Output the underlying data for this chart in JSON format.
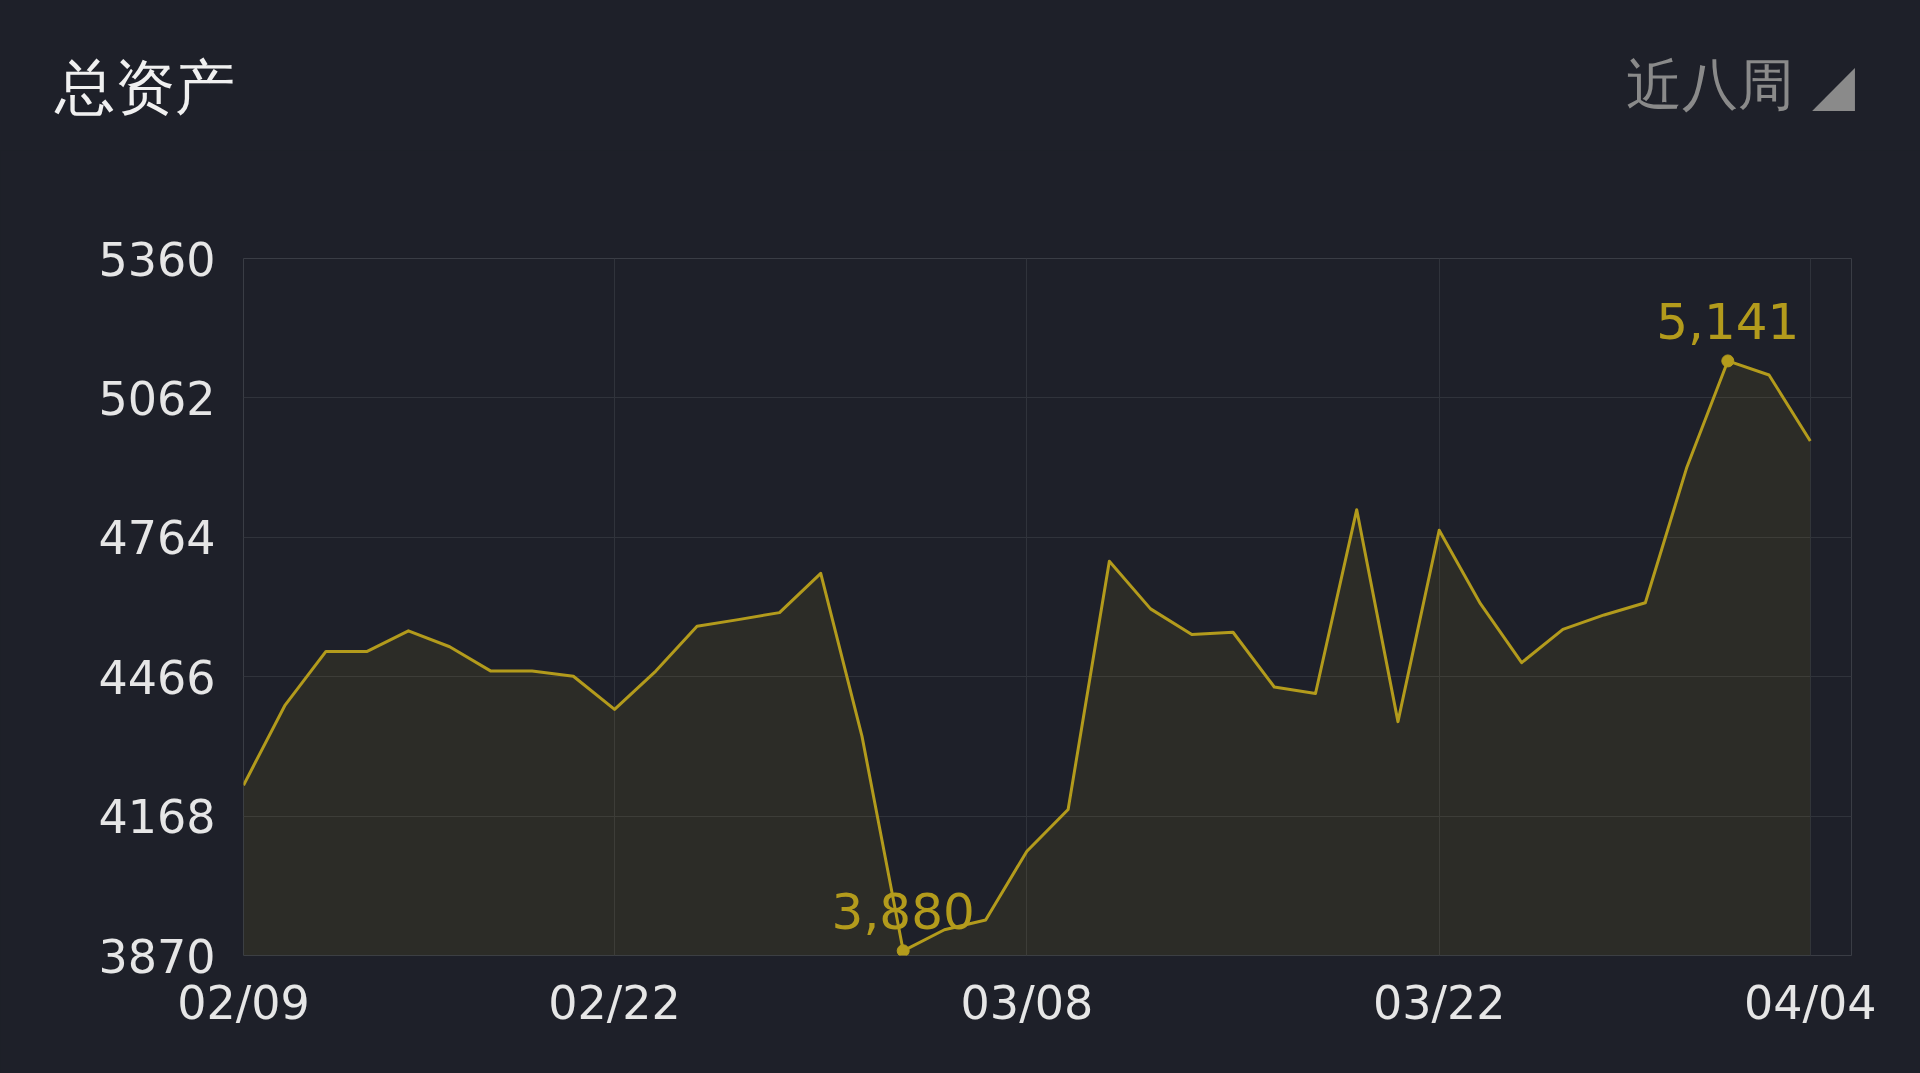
{
  "chart_data": {
    "type": "area",
    "title": "总资产",
    "annotations": [
      "近八周 ◢"
    ],
    "categories": [
      "02/09",
      null,
      null,
      null,
      null,
      null,
      null,
      null,
      null,
      "02/22",
      null,
      null,
      null,
      null,
      null,
      null,
      null,
      null,
      null,
      "03/08",
      null,
      null,
      null,
      null,
      null,
      null,
      null,
      null,
      null,
      "03/22",
      null,
      null,
      null,
      null,
      null,
      null,
      null,
      null,
      "04/04"
    ],
    "series": [
      {
        "color": "#b39b1c",
        "values": [
          4234,
          4404,
          4520,
          4520,
          4564,
          4530,
          4478,
          4478,
          4467,
          4396,
          4478,
          4574,
          4588,
          4603,
          4687,
          4339,
          3880,
          3925,
          3946,
          4093,
          4182,
          4713,
          4611,
          4556,
          4561,
          4444,
          4430,
          4823,
          4370,
          4779,
          4622,
          4496,
          4567,
          4598,
          4624,
          4912,
          5141,
          5111,
          4970
        ],
        "value_labels": [
          null,
          null,
          null,
          null,
          null,
          null,
          null,
          null,
          null,
          null,
          null,
          null,
          null,
          null,
          null,
          null,
          "3,880",
          null,
          null,
          null,
          null,
          null,
          null,
          null,
          null,
          null,
          null,
          null,
          null,
          null,
          null,
          null,
          null,
          null,
          null,
          null,
          "5,141",
          null,
          null
        ]
      }
    ],
    "ylim": [
      3870,
      5360
    ],
    "yticks": [
      3870,
      4168,
      4466,
      4764,
      5062,
      5360
    ],
    "grid": true
  }
}
